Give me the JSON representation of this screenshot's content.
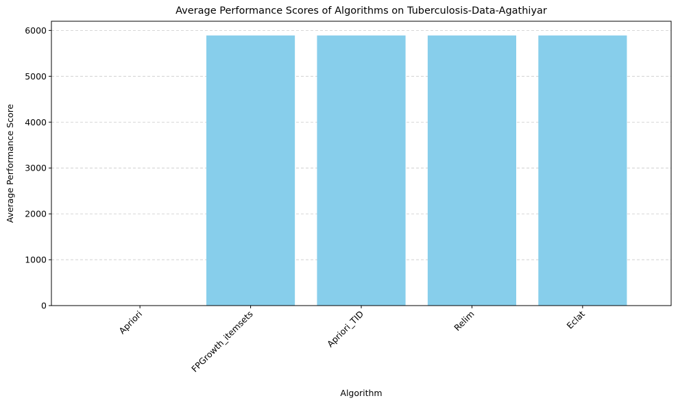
{
  "chart_data": {
    "type": "bar",
    "title": "Average Performance Scores of Algorithms on Tuberculosis-Data-Agathiyar",
    "xlabel": "Algorithm",
    "ylabel": "Average Performance Score",
    "categories": [
      "Apriori",
      "FPGrowth_itemsets",
      "Apriori_TID",
      "Relim",
      "Eclat"
    ],
    "values": [
      0,
      5890,
      5890,
      5890,
      5890
    ],
    "ylim": [
      0,
      6200
    ],
    "yticks": [
      0,
      1000,
      2000,
      3000,
      4000,
      5000,
      6000
    ],
    "xtick_rotation": 45,
    "grid": {
      "axis": "y",
      "style": "dashed",
      "color": "#c8c8c8"
    },
    "bar_color": "#87ceeb",
    "legend": null
  }
}
